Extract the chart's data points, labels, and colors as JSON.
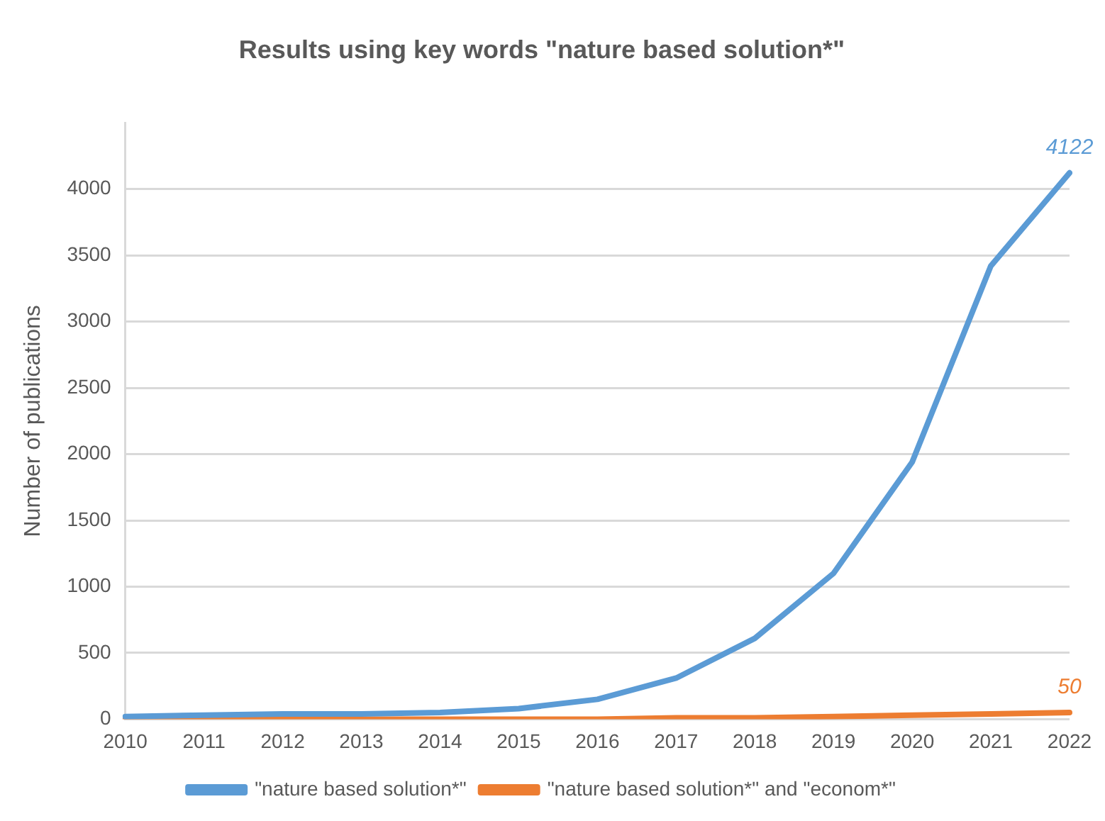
{
  "chart_data": {
    "type": "line",
    "title": "Results using key words \"nature based solution*\"",
    "ylabel": "Number of publications",
    "categories": [
      "2010",
      "2011",
      "2012",
      "2013",
      "2014",
      "2015",
      "2016",
      "2017",
      "2018",
      "2019",
      "2020",
      "2021",
      "2022"
    ],
    "series": [
      {
        "name": "\"nature based solution*\"",
        "color": "#5b9bd5",
        "values": [
          20,
          30,
          40,
          40,
          50,
          80,
          150,
          310,
          610,
          1100,
          1940,
          3420,
          4122
        ],
        "value_labels": [
          null,
          null,
          null,
          null,
          null,
          null,
          null,
          null,
          null,
          null,
          null,
          null,
          "4122"
        ]
      },
      {
        "name": "\"nature based solution*\" and \"econom*\"",
        "color": "#ed7d31",
        "values": [
          0,
          0,
          0,
          0,
          0,
          0,
          0,
          10,
          10,
          20,
          30,
          40,
          50
        ],
        "value_labels": [
          null,
          null,
          null,
          null,
          null,
          null,
          null,
          null,
          null,
          null,
          null,
          null,
          "50"
        ]
      }
    ],
    "ylim": [
      0,
      4500
    ],
    "yticks": [
      0,
      500,
      1000,
      1500,
      2000,
      2500,
      3000,
      3500,
      4000
    ],
    "grid": "y",
    "legend": "bottom",
    "marker": "none",
    "line_style": "solid"
  }
}
